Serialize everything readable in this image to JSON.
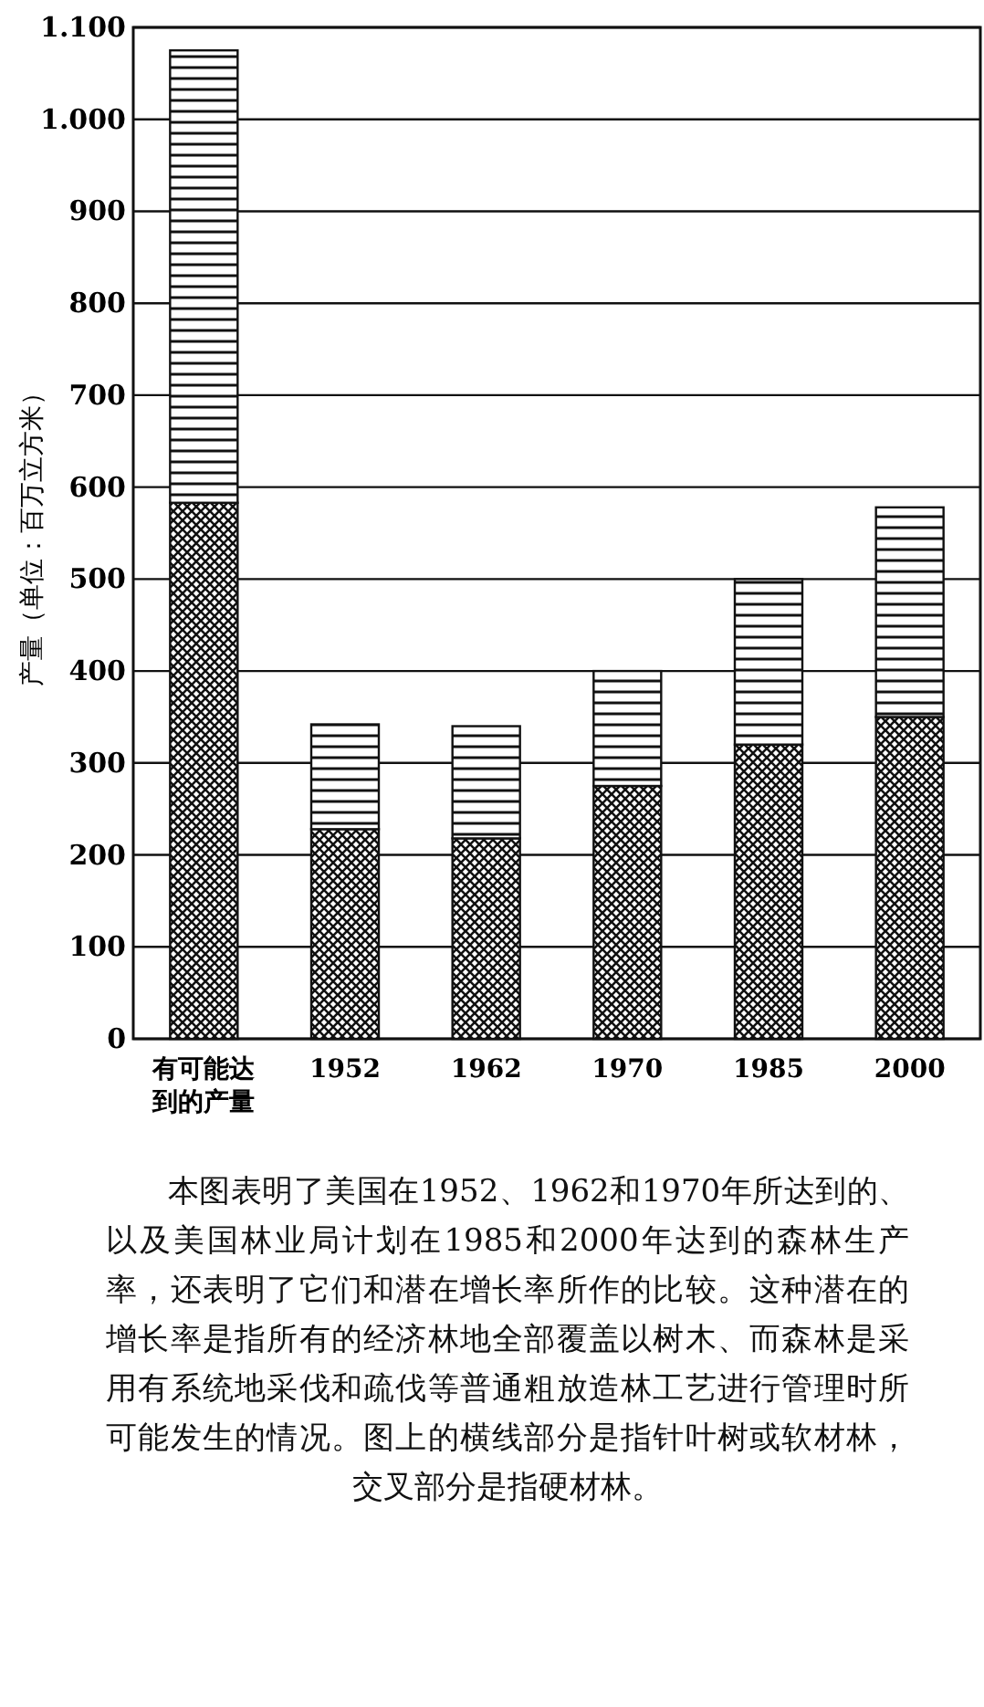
{
  "chart_data": {
    "type": "bar",
    "stacked": true,
    "ylabel": "产量（单位：百万立方米）",
    "categories": [
      "有可能达到的产量",
      "1952",
      "1962",
      "1970",
      "1985",
      "2000"
    ],
    "series": [
      {
        "color": "#111111",
        "values": [
          583,
          228,
          218,
          275,
          320,
          350
        ]
      },
      {
        "color": "#111111",
        "values": [
          492,
          114,
          122,
          125,
          180,
          228
        ]
      }
    ],
    "ylim": [
      0,
      1100
    ],
    "yticks": [
      0,
      100,
      200,
      300,
      400,
      500,
      600,
      700,
      800,
      900,
      {
        "value": 1000,
        "label": "1.000"
      },
      {
        "value": 1100,
        "label": "1.100"
      }
    ],
    "grid": "y",
    "annotations": [
      "本图表明了美国在1952、1962和1970年所达到的、以及美国林业局计划在1985和2000年达到的森林生产率，还表明了它们和潜在增长率所作的比较。这种潜在的增长率是指所有的经济林地全部覆盖以树木、而森林是采用有系统地采伐和疏伐等普通粗放造林工艺进行管理时所可能发生的情况。图上的横线部分是指针叶树或软材林，交叉部分是指硬材林。"
    ]
  }
}
